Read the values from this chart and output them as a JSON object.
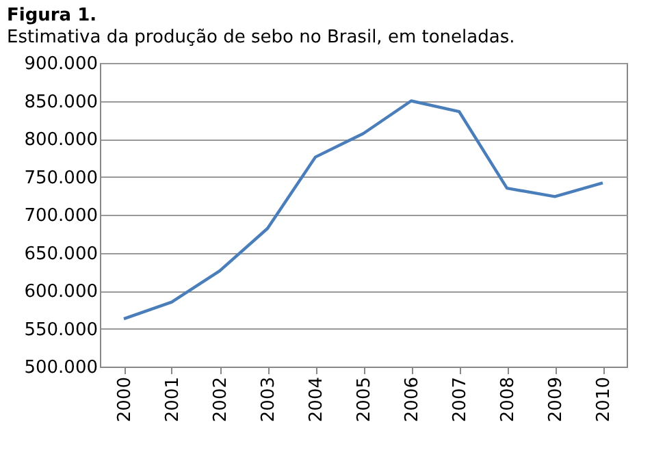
{
  "chart_data": {
    "type": "line",
    "title": "Figura 1.",
    "subtitle": "Estimativa da produção de sebo no Brasil, em toneladas.",
    "categories": [
      "2000",
      "2001",
      "2002",
      "2003",
      "2004",
      "2005",
      "2006",
      "2007",
      "2008",
      "2009",
      "2010"
    ],
    "series": [
      {
        "color": "#4a7ebb",
        "values": [
          563000,
          585000,
          626000,
          682000,
          776000,
          807000,
          850000,
          836000,
          735000,
          724000,
          742000
        ]
      }
    ],
    "ylim": [
      500000,
      900000
    ],
    "yticks": [
      {
        "value": 500000,
        "label": "500.000"
      },
      {
        "value": 550000,
        "label": "550.000"
      },
      {
        "value": 600000,
        "label": "600.000"
      },
      {
        "value": 650000,
        "label": "650.000"
      },
      {
        "value": 700000,
        "label": "700.000"
      },
      {
        "value": 750000,
        "label": "750.000"
      },
      {
        "value": 800000,
        "label": "800.000"
      },
      {
        "value": 850000,
        "label": "850.000"
      },
      {
        "value": 900000,
        "label": "900.000"
      }
    ],
    "grid": "y",
    "marker": "none",
    "line_style": "solid"
  }
}
